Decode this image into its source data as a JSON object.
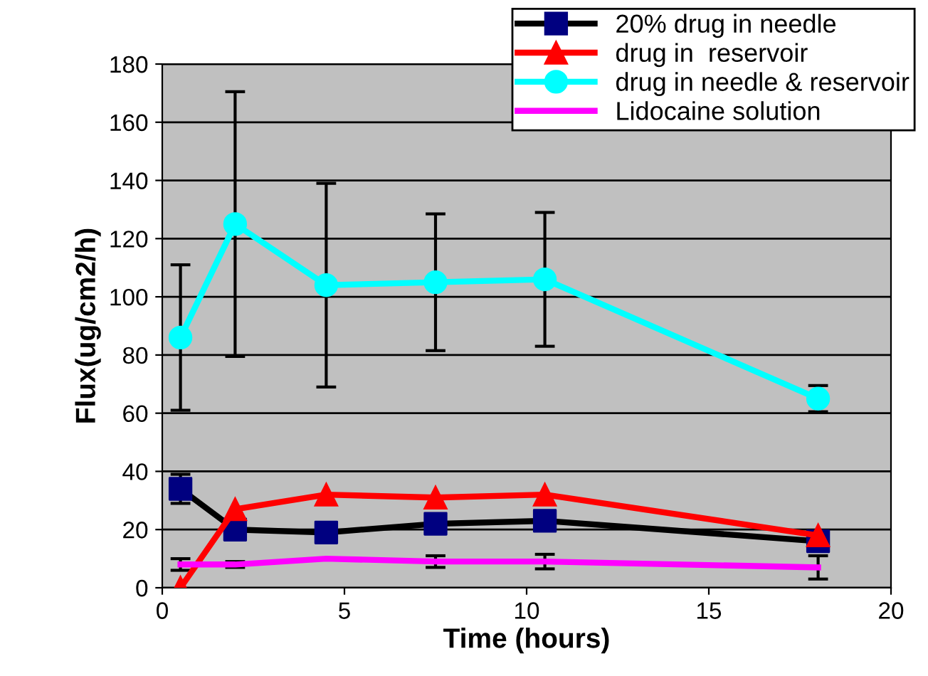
{
  "chart_data": {
    "type": "line",
    "xlabel": "Time (hours)",
    "ylabel": "Flux(ug/cm2/h)",
    "x": [
      0.5,
      2,
      4.5,
      7.5,
      10.5,
      18
    ],
    "xlim": [
      0,
      20
    ],
    "xticks": [
      0,
      5,
      10,
      15,
      20
    ],
    "ylim": [
      0,
      180
    ],
    "yticks": [
      0,
      20,
      40,
      60,
      80,
      100,
      120,
      140,
      160,
      180
    ],
    "grid": "y",
    "legend": "top right",
    "series": [
      {
        "name": "20% drug in needle",
        "color": "#000000",
        "colors": [
          "#000080",
          "#000080",
          "#000080",
          "#000080",
          "#000080",
          "#000080"
        ],
        "marker": "square",
        "values": [
          34,
          20,
          19,
          22,
          23,
          16
        ],
        "errors": [
          5,
          null,
          null,
          null,
          null,
          null
        ]
      },
      {
        "name": "drug in  reservoir",
        "color": "#ff0000",
        "marker": "triangle",
        "values": [
          0,
          27,
          32,
          31,
          32,
          18
        ]
      },
      {
        "name": "drug in needle & reservoir",
        "color": "#00ffff",
        "marker": "circle",
        "values": [
          86,
          125,
          104,
          105,
          106,
          65
        ],
        "errors": [
          25,
          45.5,
          35,
          23.5,
          23,
          4.5
        ]
      },
      {
        "name": "Lidocaine solution",
        "color": "#ff00ff",
        "marker": "none",
        "values": [
          8,
          8,
          10,
          9,
          9,
          7
        ],
        "errors": [
          2,
          1,
          null,
          2,
          2.5,
          4
        ]
      }
    ]
  }
}
